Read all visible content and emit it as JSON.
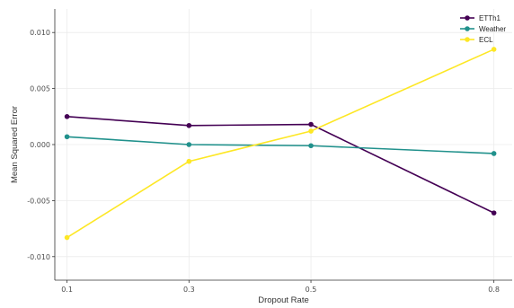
{
  "chart_data": {
    "type": "line",
    "title": "",
    "xlabel": "Dropout Rate",
    "ylabel": "Mean Squared Error",
    "x": [
      0.1,
      0.3,
      0.5,
      0.8
    ],
    "x_tick_labels": [
      "0.1",
      "0.3",
      "0.5",
      "0.8"
    ],
    "xlim": [
      0.08,
      0.83
    ],
    "ylim": [
      -0.0121,
      0.0121
    ],
    "y_ticks": [
      -0.01,
      -0.005,
      0,
      0.005,
      0.01
    ],
    "y_tick_labels": [
      "-0.010",
      "-0.005",
      "0.000",
      "0.005",
      "0.010"
    ],
    "grid": true,
    "legend_position": "top-right",
    "series": [
      {
        "name": "ETTh1",
        "color": "#440154",
        "values": [
          0.0025,
          0.0017,
          0.0018,
          -0.0061
        ]
      },
      {
        "name": "Weather",
        "color": "#21918c",
        "values": [
          0.0007,
          0.0,
          -0.0001,
          -0.0008
        ]
      },
      {
        "name": "ECL",
        "color": "#fde725",
        "values": [
          -0.0083,
          -0.0015,
          0.0012,
          0.0085
        ]
      }
    ]
  }
}
